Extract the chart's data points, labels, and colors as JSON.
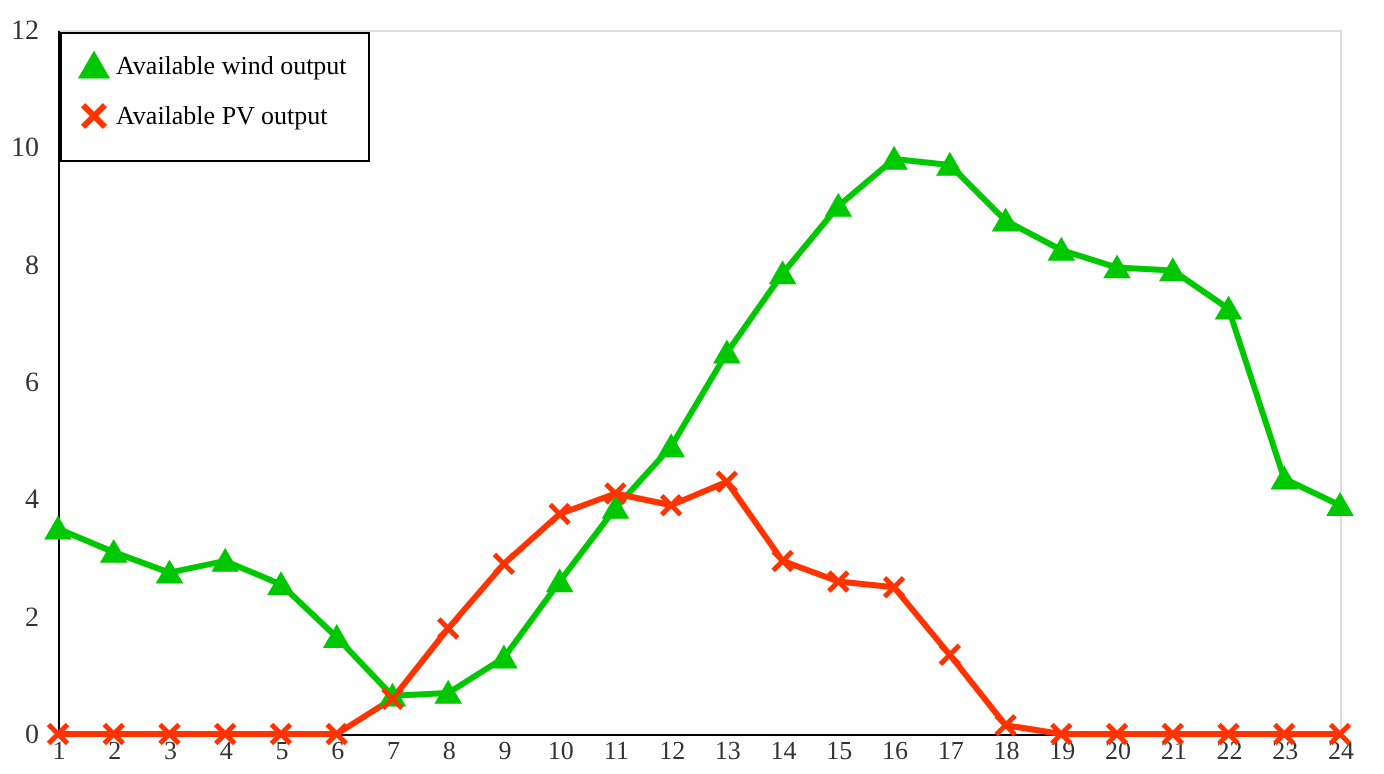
{
  "chart_data": {
    "type": "line",
    "x": [
      1,
      2,
      3,
      4,
      5,
      6,
      7,
      8,
      9,
      10,
      11,
      12,
      13,
      14,
      15,
      16,
      17,
      18,
      19,
      20,
      21,
      22,
      23,
      24
    ],
    "series": [
      {
        "name": "Available wind output",
        "color": "#00c800",
        "marker": "triangle",
        "values": [
          3.5,
          3.1,
          2.75,
          2.95,
          2.55,
          1.65,
          0.65,
          0.7,
          1.3,
          2.6,
          3.85,
          4.9,
          6.5,
          7.85,
          9.0,
          9.8,
          9.7,
          8.75,
          8.25,
          7.95,
          7.9,
          7.25,
          4.35,
          3.9
        ]
      },
      {
        "name": "Available PV output",
        "color": "#ff3300",
        "marker": "cross",
        "values": [
          0,
          0,
          0,
          0,
          0,
          0,
          0.6,
          1.8,
          2.9,
          3.75,
          4.1,
          3.9,
          4.3,
          2.95,
          2.6,
          2.5,
          1.35,
          0.15,
          0,
          0,
          0,
          0,
          0,
          0
        ]
      }
    ],
    "xlim": [
      1,
      24
    ],
    "xticks": [
      1,
      2,
      3,
      4,
      5,
      6,
      7,
      8,
      9,
      10,
      11,
      12,
      13,
      14,
      15,
      16,
      17,
      18,
      19,
      20,
      21,
      22,
      23,
      24
    ],
    "ylim": [
      0,
      12
    ],
    "yticks": [
      0,
      2,
      4,
      6,
      8,
      10,
      12
    ],
    "grid": false,
    "legend": "top left",
    "line_style": "solid"
  }
}
